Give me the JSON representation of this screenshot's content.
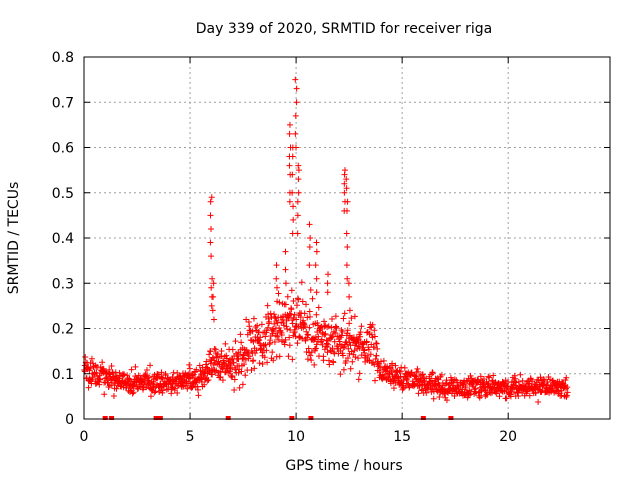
{
  "chart_data": {
    "type": "scatter",
    "title": "Day 339 of 2020, SRMTID for receiver riga",
    "xlabel": "GPS time / hours",
    "ylabel": "SRMTID / TECUs",
    "xlim": [
      0,
      24.8
    ],
    "ylim": [
      0,
      0.8
    ],
    "x_ticks": [
      0,
      5,
      10,
      15,
      20
    ],
    "x_tick_labels": [
      "0",
      "5",
      "10",
      "15",
      "20"
    ],
    "y_ticks": [
      0,
      0.1,
      0.2,
      0.3,
      0.4,
      0.5,
      0.6,
      0.7,
      0.8
    ],
    "y_tick_labels": [
      "0",
      "0.1",
      "0.2",
      "0.3",
      "0.4",
      "0.5",
      "0.6",
      "0.7",
      "0.8"
    ],
    "grid": true,
    "marker": "plus",
    "color": "#ff0000",
    "series": [
      {
        "name": "SRMTID",
        "envelope_x": [
          0,
          0.5,
          1,
          2,
          3,
          4,
          5,
          5.6,
          6,
          6.5,
          7,
          7.5,
          8,
          8.5,
          9,
          9.5,
          10,
          10.5,
          11,
          11.5,
          12,
          12.5,
          13,
          13.5,
          14,
          15,
          16,
          17,
          18,
          19,
          20,
          21,
          22,
          22.8
        ],
        "envelope_y": [
          0.11,
          0.1,
          0.09,
          0.08,
          0.08,
          0.08,
          0.09,
          0.09,
          0.12,
          0.12,
          0.12,
          0.14,
          0.17,
          0.18,
          0.2,
          0.21,
          0.22,
          0.21,
          0.19,
          0.17,
          0.17,
          0.17,
          0.17,
          0.16,
          0.11,
          0.09,
          0.08,
          0.07,
          0.07,
          0.07,
          0.07,
          0.07,
          0.07,
          0.07
        ],
        "spikes": [
          {
            "x": 6.0,
            "y": [
              0.49,
              0.48,
              0.45,
              0.42,
              0.39,
              0.36,
              0.31,
              0.29,
              0.27,
              0.25
            ]
          },
          {
            "x": 6.1,
            "y": [
              0.3,
              0.27,
              0.24,
              0.22
            ]
          },
          {
            "x": 9.1,
            "y": [
              0.34,
              0.31,
              0.29,
              0.26
            ]
          },
          {
            "x": 9.5,
            "y": [
              0.37,
              0.33,
              0.3
            ]
          },
          {
            "x": 9.7,
            "y": [
              0.65,
              0.63,
              0.6,
              0.58,
              0.56,
              0.54,
              0.5,
              0.48
            ]
          },
          {
            "x": 9.85,
            "y": [
              0.6,
              0.58,
              0.54,
              0.5,
              0.47,
              0.44,
              0.41
            ]
          },
          {
            "x": 10.0,
            "y": [
              0.75,
              0.73,
              0.7,
              0.67,
              0.63,
              0.6
            ]
          },
          {
            "x": 10.1,
            "y": [
              0.56,
              0.55,
              0.53,
              0.5,
              0.48,
              0.45,
              0.41
            ]
          },
          {
            "x": 10.65,
            "y": [
              0.43,
              0.4,
              0.38,
              0.34
            ]
          },
          {
            "x": 10.95,
            "y": [
              0.39,
              0.37,
              0.34,
              0.31,
              0.28
            ]
          },
          {
            "x": 11.5,
            "y": [
              0.32,
              0.3,
              0.28
            ]
          },
          {
            "x": 12.3,
            "y": [
              0.55,
              0.54,
              0.52,
              0.5,
              0.48,
              0.46
            ]
          },
          {
            "x": 12.4,
            "y": [
              0.53,
              0.51,
              0.48,
              0.46,
              0.41,
              0.38,
              0.34,
              0.31
            ]
          },
          {
            "x": 12.5,
            "y": [
              0.3,
              0.27,
              0.24
            ]
          }
        ],
        "gap_markers_x": [
          1.0,
          1.3,
          3.4,
          3.6,
          6.8,
          9.8,
          10.7,
          16.0,
          17.3
        ]
      }
    ]
  }
}
